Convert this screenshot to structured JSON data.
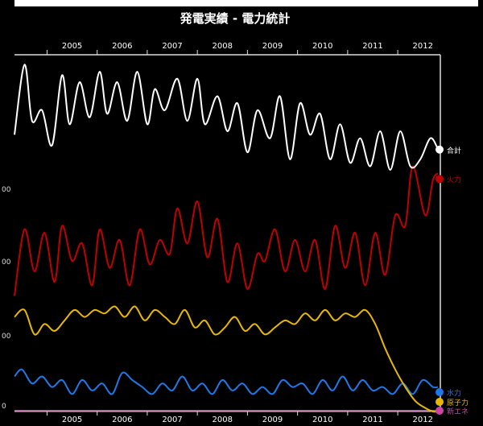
{
  "chart_data": {
    "type": "line",
    "title": "発電実績 - 電力統計",
    "x_ticks": [
      "2005",
      "2006",
      "2007",
      "2008",
      "2009",
      "2010",
      "2011",
      "2012"
    ],
    "y_ticks": [
      "00",
      "00",
      "00",
      "0"
    ],
    "xlim": [
      2004.35,
      2012.85
    ],
    "ylim": [
      0,
      100
    ],
    "colors": {
      "total": "#ffffff",
      "thermal": "#c00000",
      "nuclear": "#e8b800",
      "hydro": "#1e78e6",
      "solar": "#cc44aa",
      "axis": "#dddddd"
    },
    "series": [
      {
        "key": "total",
        "name": "合計",
        "x": [
          2004.35,
          2004.55,
          2004.7,
          2004.9,
          2005.1,
          2005.3,
          2005.45,
          2005.65,
          2005.85,
          2006.05,
          2006.2,
          2006.4,
          2006.6,
          2006.8,
          2007.0,
          2007.15,
          2007.35,
          2007.6,
          2007.8,
          2008.0,
          2008.15,
          2008.4,
          2008.6,
          2008.8,
          2009.0,
          2009.2,
          2009.45,
          2009.65,
          2009.85,
          2010.05,
          2010.25,
          2010.45,
          2010.65,
          2010.85,
          2011.05,
          2011.25,
          2011.45,
          2011.65,
          2011.85,
          2012.05,
          2012.25,
          2012.45,
          2012.65,
          2012.8
        ],
        "values": [
          79,
          99,
          83,
          86,
          76,
          96,
          82,
          94,
          84,
          97,
          85,
          94,
          83,
          97,
          82,
          92,
          86,
          95,
          83,
          95,
          82,
          90,
          80,
          88,
          74,
          86,
          78,
          90,
          72,
          88,
          79,
          85,
          72,
          82,
          71,
          78,
          70,
          80,
          69,
          80,
          70,
          72,
          78,
          75
        ]
      },
      {
        "key": "thermal",
        "name": "火力",
        "x": [
          2004.35,
          2004.55,
          2004.75,
          2004.95,
          2005.15,
          2005.3,
          2005.5,
          2005.7,
          2005.9,
          2006.05,
          2006.25,
          2006.45,
          2006.65,
          2006.85,
          2007.05,
          2007.25,
          2007.45,
          2007.6,
          2007.8,
          2008.0,
          2008.2,
          2008.4,
          2008.6,
          2008.8,
          2009.0,
          2009.2,
          2009.35,
          2009.55,
          2009.75,
          2009.95,
          2010.15,
          2010.35,
          2010.55,
          2010.75,
          2010.95,
          2011.15,
          2011.35,
          2011.55,
          2011.75,
          2011.95,
          2012.15,
          2012.3,
          2012.55,
          2012.7,
          2012.8
        ],
        "values": [
          33,
          52,
          40,
          51,
          37,
          53,
          43,
          48,
          36,
          52,
          41,
          49,
          36,
          52,
          42,
          49,
          45,
          58,
          48,
          60,
          44,
          55,
          37,
          48,
          35,
          45,
          43,
          52,
          40,
          49,
          40,
          49,
          35,
          53,
          41,
          51,
          36,
          51,
          39,
          56,
          53,
          70,
          56,
          66,
          68
        ]
      },
      {
        "key": "nuclear",
        "name": "原子力",
        "x": [
          2004.35,
          2004.55,
          2004.75,
          2004.95,
          2005.15,
          2005.35,
          2005.55,
          2005.75,
          2005.95,
          2006.15,
          2006.35,
          2006.55,
          2006.75,
          2006.95,
          2007.15,
          2007.35,
          2007.55,
          2007.75,
          2007.95,
          2008.15,
          2008.35,
          2008.55,
          2008.75,
          2008.95,
          2009.15,
          2009.35,
          2009.55,
          2009.75,
          2009.95,
          2010.15,
          2010.35,
          2010.55,
          2010.75,
          2010.95,
          2011.15,
          2011.35,
          2011.55,
          2011.75,
          2011.95,
          2012.15,
          2012.35,
          2012.55,
          2012.7,
          2012.8
        ],
        "values": [
          27,
          29,
          22,
          25,
          23,
          26,
          29,
          27,
          29,
          28,
          30,
          27,
          30,
          26,
          29,
          27,
          25,
          29,
          24,
          26,
          22,
          24,
          27,
          23,
          25,
          22,
          24,
          26,
          25,
          28,
          26,
          29,
          26,
          28,
          27,
          29,
          25,
          18,
          12,
          7,
          3,
          1,
          0,
          0
        ]
      },
      {
        "key": "hydro",
        "name": "水力",
        "x": [
          2004.35,
          2004.5,
          2004.7,
          2004.9,
          2005.1,
          2005.3,
          2005.5,
          2005.7,
          2005.9,
          2006.1,
          2006.3,
          2006.5,
          2006.7,
          2006.9,
          2007.1,
          2007.3,
          2007.5,
          2007.7,
          2007.9,
          2008.1,
          2008.3,
          2008.5,
          2008.7,
          2008.9,
          2009.1,
          2009.3,
          2009.5,
          2009.7,
          2009.9,
          2010.1,
          2010.3,
          2010.5,
          2010.7,
          2010.9,
          2011.1,
          2011.3,
          2011.5,
          2011.7,
          2011.9,
          2012.1,
          2012.3,
          2012.5,
          2012.7,
          2012.8
        ],
        "values": [
          10,
          12,
          8,
          10,
          7,
          9,
          5,
          9,
          6,
          8,
          5,
          11,
          9,
          7,
          5,
          8,
          6,
          10,
          6,
          8,
          5,
          9,
          6,
          8,
          5,
          7,
          5,
          9,
          7,
          8,
          5,
          9,
          6,
          10,
          6,
          9,
          6,
          7,
          5,
          8,
          5,
          9,
          7,
          7
        ]
      },
      {
        "key": "solar",
        "name": "新エネ",
        "x": [
          2004.35,
          2012.8
        ],
        "values": [
          0.3,
          0.3
        ]
      }
    ],
    "legend_labels": [
      "合計",
      "火力",
      "水力",
      "原子力",
      "新エネ"
    ]
  }
}
